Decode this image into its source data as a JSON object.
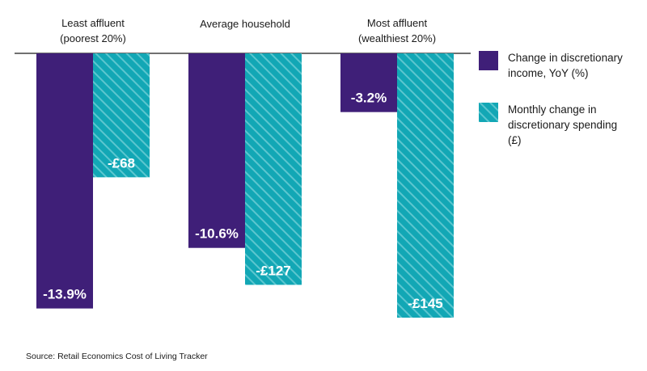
{
  "chart_data": {
    "type": "bar",
    "categories": [
      [
        "Least affluent",
        "(poorest 20%)"
      ],
      [
        "Average household"
      ],
      [
        "Most affluent",
        "(wealthiest 20%)"
      ]
    ],
    "series": [
      {
        "name": "Change in discretionary income, YoY (%)",
        "legend_lines": [
          "Change in discretionary",
          "income, YoY (%)"
        ],
        "values": [
          -13.9,
          -10.6,
          -3.2
        ],
        "labels": [
          "-13.9%",
          "-10.6%",
          "-3.2%"
        ],
        "color": "#3f1f78",
        "scale_min": -14.4
      },
      {
        "name": "Monthly change in discretionary spending (£)",
        "legend_lines": [
          "Monthly change in",
          "discretionary spending",
          "(£)"
        ],
        "values": [
          -68,
          -127,
          -145
        ],
        "labels": [
          "-£68",
          "-£127",
          "-£145"
        ],
        "color": "#12a7b5",
        "stripe_color": "#5cc6cf",
        "scale_min": -145
      }
    ],
    "legend_position": "right",
    "grid": false
  },
  "source": "Source: Retail Economics Cost of Living Tracker"
}
